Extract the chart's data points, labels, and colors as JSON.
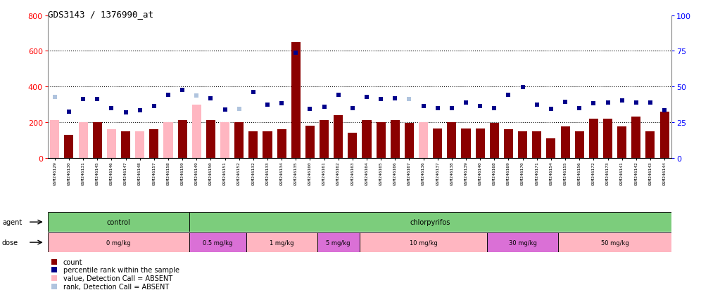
{
  "title": "GDS3143 / 1376990_at",
  "samples": [
    "GSM246129",
    "GSM246130",
    "GSM246131",
    "GSM246145",
    "GSM246146",
    "GSM246147",
    "GSM246148",
    "GSM246157",
    "GSM246158",
    "GSM246159",
    "GSM246149",
    "GSM246150",
    "GSM246151",
    "GSM246152",
    "GSM246132",
    "GSM246133",
    "GSM246134",
    "GSM246135",
    "GSM246160",
    "GSM246161",
    "GSM246162",
    "GSM246163",
    "GSM246164",
    "GSM246165",
    "GSM246166",
    "GSM246167",
    "GSM246136",
    "GSM246137",
    "GSM246138",
    "GSM246139",
    "GSM246140",
    "GSM246168",
    "GSM246169",
    "GSM246170",
    "GSM246171",
    "GSM246154",
    "GSM246155",
    "GSM246156",
    "GSM246172",
    "GSM246173",
    "GSM246141",
    "GSM246142",
    "GSM246143",
    "GSM246144"
  ],
  "count_values": [
    210,
    130,
    200,
    200,
    160,
    150,
    150,
    160,
    200,
    210,
    300,
    210,
    200,
    200,
    150,
    150,
    160,
    650,
    180,
    210,
    240,
    140,
    210,
    200,
    210,
    195,
    200,
    165,
    200,
    165,
    165,
    195,
    160,
    150,
    150,
    110,
    175,
    150,
    220,
    220,
    175,
    230,
    150,
    260
  ],
  "count_absent": [
    true,
    false,
    true,
    false,
    true,
    false,
    true,
    false,
    true,
    false,
    true,
    false,
    true,
    false,
    false,
    false,
    false,
    false,
    false,
    false,
    false,
    false,
    false,
    false,
    false,
    false,
    true,
    false,
    false,
    false,
    false,
    false,
    false,
    false,
    false,
    false,
    false,
    false,
    false,
    false,
    false,
    false,
    false,
    false
  ],
  "rank_pct": [
    42.5,
    32.5,
    41.3,
    41.3,
    35.0,
    31.9,
    33.1,
    36.3,
    44.4,
    47.5,
    43.8,
    41.9,
    33.8,
    34.4,
    46.3,
    37.5,
    38.1,
    73.8,
    34.4,
    35.6,
    44.4,
    35.0,
    42.5,
    41.3,
    41.9,
    41.3,
    36.3,
    35.0,
    35.0,
    38.8,
    36.3,
    35.0,
    44.4,
    49.4,
    37.5,
    34.4,
    39.4,
    35.0,
    38.1,
    38.8,
    40.0,
    38.8,
    38.8,
    33.1
  ],
  "rank_absent": [
    true,
    false,
    false,
    false,
    false,
    false,
    false,
    false,
    false,
    false,
    true,
    false,
    false,
    true,
    false,
    false,
    false,
    false,
    false,
    false,
    false,
    false,
    false,
    false,
    false,
    true,
    false,
    false,
    false,
    false,
    false,
    false,
    false,
    false,
    false,
    false,
    false,
    false,
    false,
    false,
    false,
    false,
    false,
    false
  ],
  "bar_color_present": "#8B0000",
  "bar_color_absent": "#FFB6C1",
  "rank_color_present": "#00008B",
  "rank_color_absent": "#B0C4DE",
  "control_count": 10,
  "agent_green": "#7CCD7C",
  "dose_groups": [
    {
      "label": "0 mg/kg",
      "start": 0,
      "end": 9,
      "color": "#FFB6C1"
    },
    {
      "label": "0.5 mg/kg",
      "start": 10,
      "end": 13,
      "color": "#DA70D6"
    },
    {
      "label": "1 mg/kg",
      "start": 14,
      "end": 18,
      "color": "#FFB6C1"
    },
    {
      "label": "5 mg/kg",
      "start": 19,
      "end": 21,
      "color": "#DA70D6"
    },
    {
      "label": "10 mg/kg",
      "start": 22,
      "end": 30,
      "color": "#FFB6C1"
    },
    {
      "label": "30 mg/kg",
      "start": 31,
      "end": 35,
      "color": "#DA70D6"
    },
    {
      "label": "50 mg/kg",
      "start": 36,
      "end": 43,
      "color": "#FFB6C1"
    }
  ],
  "ylim_left": [
    0,
    800
  ],
  "yticks_left": [
    0,
    200,
    400,
    600,
    800
  ],
  "yticks_right": [
    0,
    25,
    50,
    75,
    100
  ],
  "grid_lines": [
    200,
    400,
    600
  ],
  "tick_bg": "#D3D3D3"
}
